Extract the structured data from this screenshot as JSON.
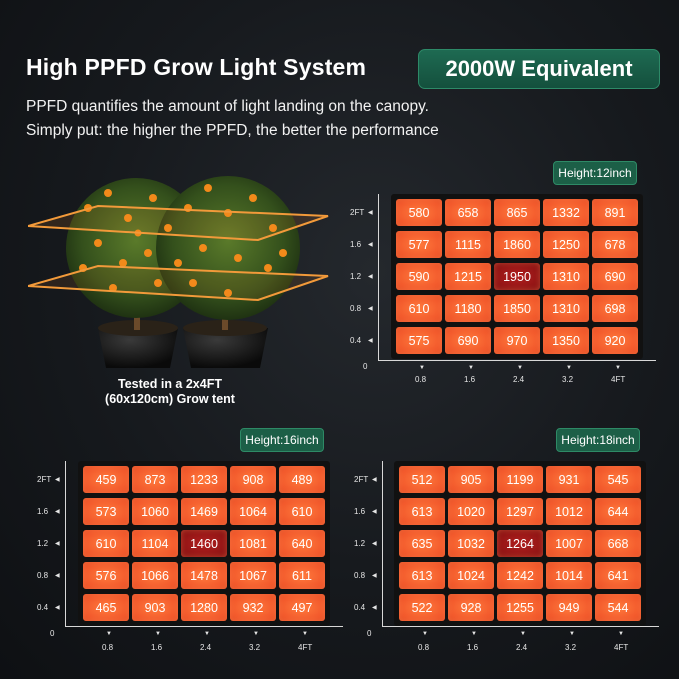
{
  "header": {
    "title": "High PPFD Grow Light System",
    "badge": "2000W Equivalent",
    "subtitle_line1": "PPFD quantifies the amount of light landing on the canopy.",
    "subtitle_line2": "Simply put: the higher the PPFD, the better the performance"
  },
  "plant": {
    "caption_line1": "Tested in a 2x4FT",
    "caption_line2": "(60x120cm) Grow tent"
  },
  "colors": {
    "cell": "#f2592c",
    "peak": "#9a1616",
    "badge": "#1c5f47"
  },
  "chart_data": [
    {
      "type": "heatmap",
      "title": "Height:12inch",
      "x_ticks": [
        "0.8",
        "1.6",
        "2.4",
        "3.2",
        "4FT"
      ],
      "y_ticks": [
        "2FT",
        "1.6",
        "1.2",
        "0.8",
        "0.4"
      ],
      "origin": "0",
      "values": [
        [
          580,
          658,
          865,
          1332,
          891
        ],
        [
          577,
          1115,
          1860,
          1250,
          678
        ],
        [
          590,
          1215,
          1950,
          1310,
          690
        ],
        [
          610,
          1180,
          1850,
          1310,
          698
        ],
        [
          575,
          690,
          970,
          1350,
          920
        ]
      ],
      "peak": [
        2,
        2
      ]
    },
    {
      "type": "heatmap",
      "title": "Height:16inch",
      "x_ticks": [
        "0.8",
        "1.6",
        "2.4",
        "3.2",
        "4FT"
      ],
      "y_ticks": [
        "2FT",
        "1.6",
        "1.2",
        "0.8",
        "0.4"
      ],
      "origin": "0",
      "values": [
        [
          459,
          873,
          1233,
          908,
          489
        ],
        [
          573,
          1060,
          1469,
          1064,
          610
        ],
        [
          610,
          1104,
          1460,
          1081,
          640
        ],
        [
          576,
          1066,
          1478,
          1067,
          611
        ],
        [
          465,
          903,
          1280,
          932,
          497
        ]
      ],
      "peak": [
        2,
        2
      ]
    },
    {
      "type": "heatmap",
      "title": "Height:18inch",
      "x_ticks": [
        "0.8",
        "1.6",
        "2.4",
        "3.2",
        "4FT"
      ],
      "y_ticks": [
        "2FT",
        "1.6",
        "1.2",
        "0.8",
        "0.4"
      ],
      "origin": "0",
      "values": [
        [
          512,
          905,
          1199,
          931,
          545
        ],
        [
          613,
          1020,
          1297,
          1012,
          644
        ],
        [
          635,
          1032,
          1264,
          1007,
          668
        ],
        [
          613,
          1024,
          1242,
          1014,
          641
        ],
        [
          522,
          928,
          1255,
          949,
          544
        ]
      ],
      "peak": [
        2,
        2
      ]
    }
  ]
}
